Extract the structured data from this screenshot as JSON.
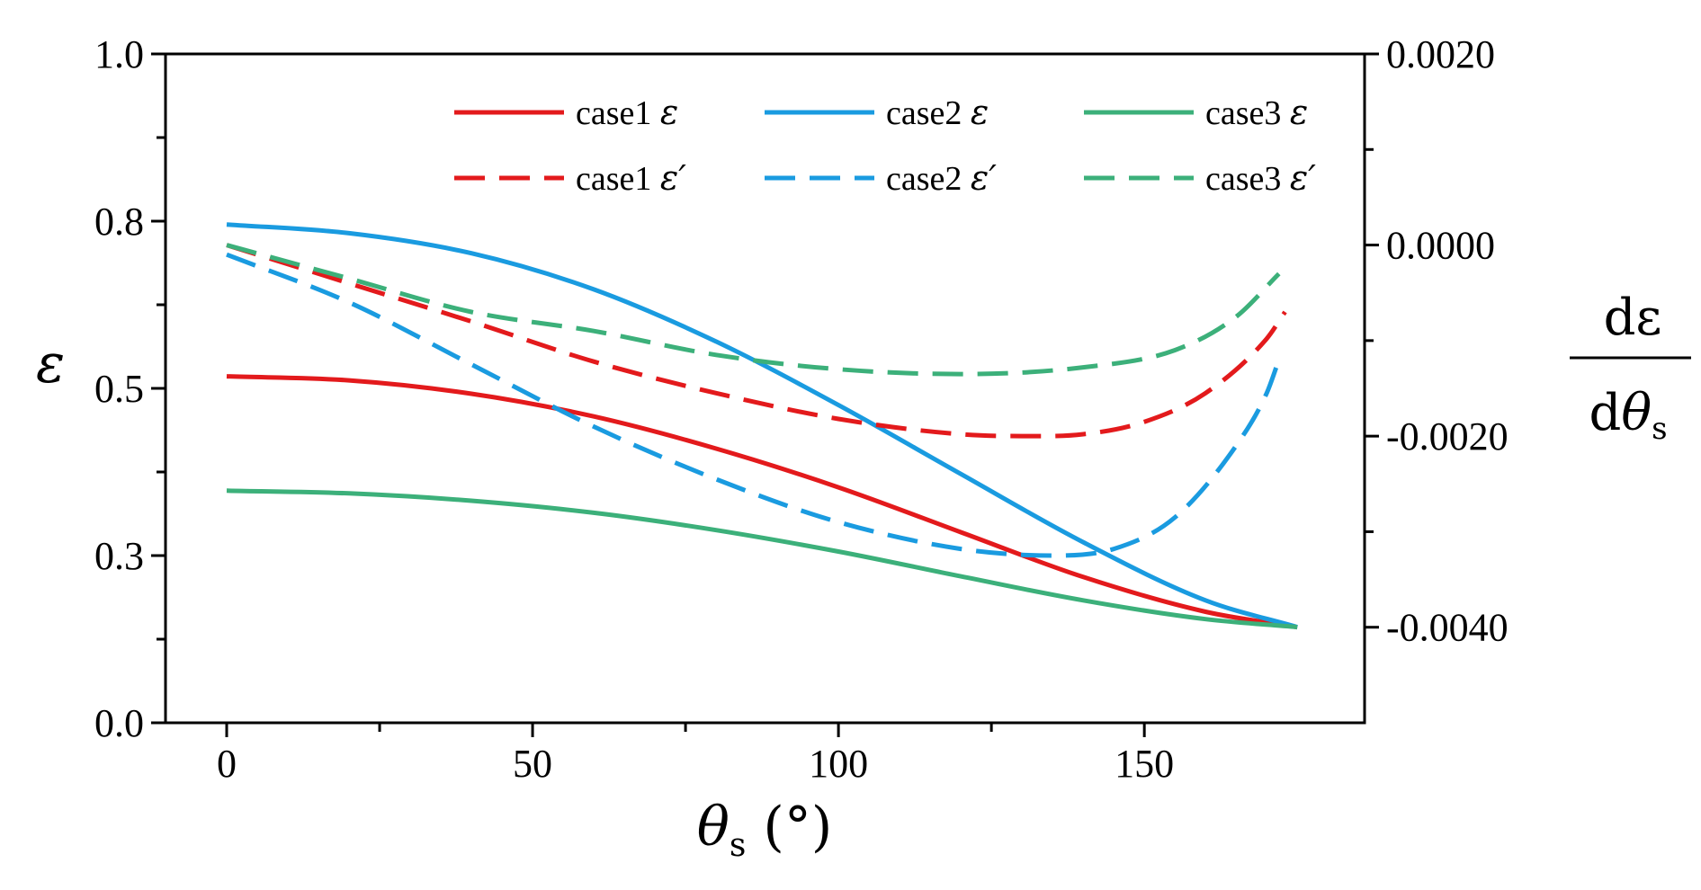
{
  "chart_data": {
    "type": "line",
    "title": "",
    "xlabel": {
      "symbol": "θ",
      "subscript": "s",
      "unit": "(°)"
    },
    "ylabel": "ε",
    "y2label": {
      "numerator": "dε",
      "denominator_symbol": "dθ",
      "denominator_subscript": "s"
    },
    "xlim": [
      -10,
      186
    ],
    "ylim": [
      0.0,
      1.0
    ],
    "y2lim": [
      -0.005,
      0.002
    ],
    "xticks": [
      0,
      50,
      100,
      150
    ],
    "xtick_labels": [
      "0",
      "50",
      "100",
      "150"
    ],
    "yticks": [
      0.0,
      0.25,
      0.5,
      0.75,
      1.0
    ],
    "ytick_labels": [
      "0.0",
      "0.3",
      "0.5",
      "0.8",
      "1.0"
    ],
    "y2ticks": [
      0.002,
      0.0,
      -0.002,
      -0.004
    ],
    "y2tick_labels": [
      "0.0020",
      "0.0000",
      "-0.0020",
      "-0.0040"
    ],
    "grid": false,
    "legend_position": "top-right",
    "series": [
      {
        "name": "case1",
        "symbol": "ε",
        "color": "#e31a1c",
        "style": "solid",
        "axis": "left",
        "x": [
          0,
          20,
          40,
          60,
          80,
          100,
          120,
          140,
          160,
          175
        ],
        "y": [
          0.518,
          0.512,
          0.492,
          0.458,
          0.41,
          0.352,
          0.285,
          0.218,
          0.166,
          0.143
        ]
      },
      {
        "name": "case2",
        "symbol": "ε",
        "color": "#1a9be0",
        "style": "solid",
        "axis": "left",
        "x": [
          0,
          20,
          40,
          60,
          80,
          100,
          120,
          140,
          160,
          175
        ],
        "y": [
          0.745,
          0.732,
          0.702,
          0.648,
          0.57,
          0.475,
          0.372,
          0.27,
          0.183,
          0.143
        ]
      },
      {
        "name": "case3",
        "symbol": "ε",
        "color": "#3cb07a",
        "style": "solid",
        "axis": "left",
        "x": [
          0,
          20,
          40,
          60,
          80,
          100,
          120,
          140,
          160,
          175
        ],
        "y": [
          0.347,
          0.343,
          0.332,
          0.314,
          0.288,
          0.256,
          0.219,
          0.183,
          0.155,
          0.143
        ]
      },
      {
        "name": "case1",
        "symbol": "ε′",
        "color": "#e31a1c",
        "style": "dashed",
        "axis": "right",
        "x": [
          0,
          20,
          40,
          60,
          80,
          100,
          120,
          130,
          140,
          150,
          160,
          170,
          173
        ],
        "y": [
          0.0,
          -0.0004,
          -0.0008,
          -0.00122,
          -0.00155,
          -0.00182,
          -0.00198,
          -0.002,
          -0.00198,
          -0.00185,
          -0.00155,
          -0.00098,
          -0.0007
        ]
      },
      {
        "name": "case2",
        "symbol": "ε′",
        "color": "#1a9be0",
        "style": "dashed",
        "axis": "right",
        "x": [
          0,
          20,
          40,
          60,
          80,
          100,
          120,
          135,
          145,
          155,
          165,
          170,
          172
        ],
        "y": [
          -0.0001,
          -0.0006,
          -0.00125,
          -0.0019,
          -0.00245,
          -0.0029,
          -0.00318,
          -0.00325,
          -0.00318,
          -0.00285,
          -0.0021,
          -0.00155,
          -0.0012
        ]
      },
      {
        "name": "case3",
        "symbol": "ε′",
        "color": "#3cb07a",
        "style": "dashed",
        "axis": "right",
        "x": [
          0,
          20,
          40,
          60,
          80,
          100,
          120,
          140,
          155,
          165,
          172
        ],
        "y": [
          0.0,
          -0.00035,
          -0.0007,
          -0.0009,
          -0.00115,
          -0.0013,
          -0.00135,
          -0.00128,
          -0.0011,
          -0.00075,
          -0.0003
        ]
      }
    ]
  }
}
